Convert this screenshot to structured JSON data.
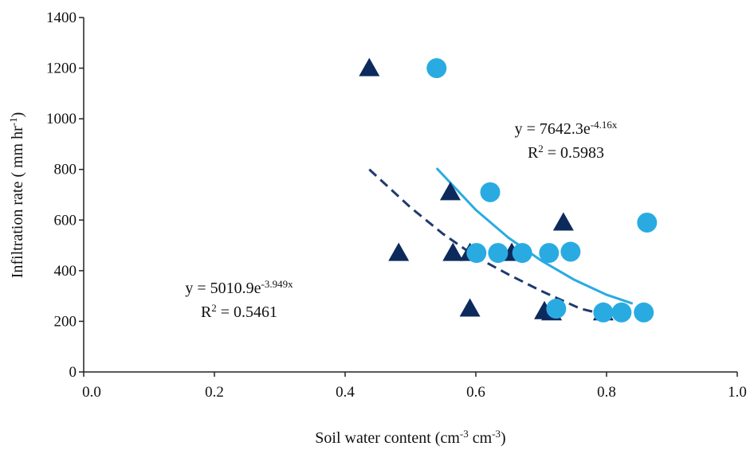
{
  "chart_data": {
    "type": "scatter",
    "x_label": [
      "Soil water content (cm",
      "-3",
      " cm",
      "-3",
      ")"
    ],
    "y_label": [
      "Infiltration rate ( mm hr",
      "-1",
      ")"
    ],
    "xlim": [
      0,
      1
    ],
    "ylim": [
      0,
      1400
    ],
    "xticks": [
      {
        "value": 0,
        "label": "0.0"
      },
      0.2,
      0.4,
      0.6,
      0.8,
      {
        "value": 1,
        "label": "1.0"
      }
    ],
    "yticks": [
      0,
      200,
      400,
      600,
      800,
      1000,
      1200,
      1400
    ],
    "grid": false,
    "series": [
      {
        "marker": "triangle",
        "color": "#0d2a5c",
        "x": [
          0.437,
          0.561,
          0.482,
          0.565,
          0.591,
          0.655,
          0.734,
          0.591,
          0.705,
          0.716,
          0.795
        ],
        "values": [
          1200,
          710,
          470,
          470,
          470,
          470,
          590,
          250,
          240,
          235,
          235
        ]
      },
      {
        "marker": "circle",
        "color": "#29abe2",
        "x": [
          0.54,
          0.622,
          0.601,
          0.634,
          0.671,
          0.712,
          0.745,
          0.723,
          0.795,
          0.823,
          0.857,
          0.862
        ],
        "values": [
          1200,
          710,
          470,
          470,
          470,
          470,
          475,
          250,
          235,
          235,
          235,
          590
        ]
      }
    ],
    "trendlines": [
      {
        "color": "#1f3a6e",
        "dash": true,
        "x": [
          0.437,
          0.5,
          0.55,
          0.6,
          0.65,
          0.7,
          0.76,
          0.8
        ],
        "values": [
          800,
          650,
          545,
          455,
          385,
          320,
          250,
          225
        ],
        "equation": [
          "y = 5010.9e",
          "-3.949x"
        ],
        "r2": [
          "R",
          "2",
          " = 0.5461"
        ]
      },
      {
        "color": "#29abe2",
        "dash": false,
        "x": [
          0.54,
          0.6,
          0.65,
          0.7,
          0.75,
          0.8,
          0.84
        ],
        "values": [
          805,
          640,
          530,
          440,
          365,
          305,
          270
        ],
        "equation": [
          "y = 7642.3e",
          "-4.16x"
        ],
        "r2": [
          "R",
          "2",
          " = 0.5983"
        ]
      }
    ]
  }
}
